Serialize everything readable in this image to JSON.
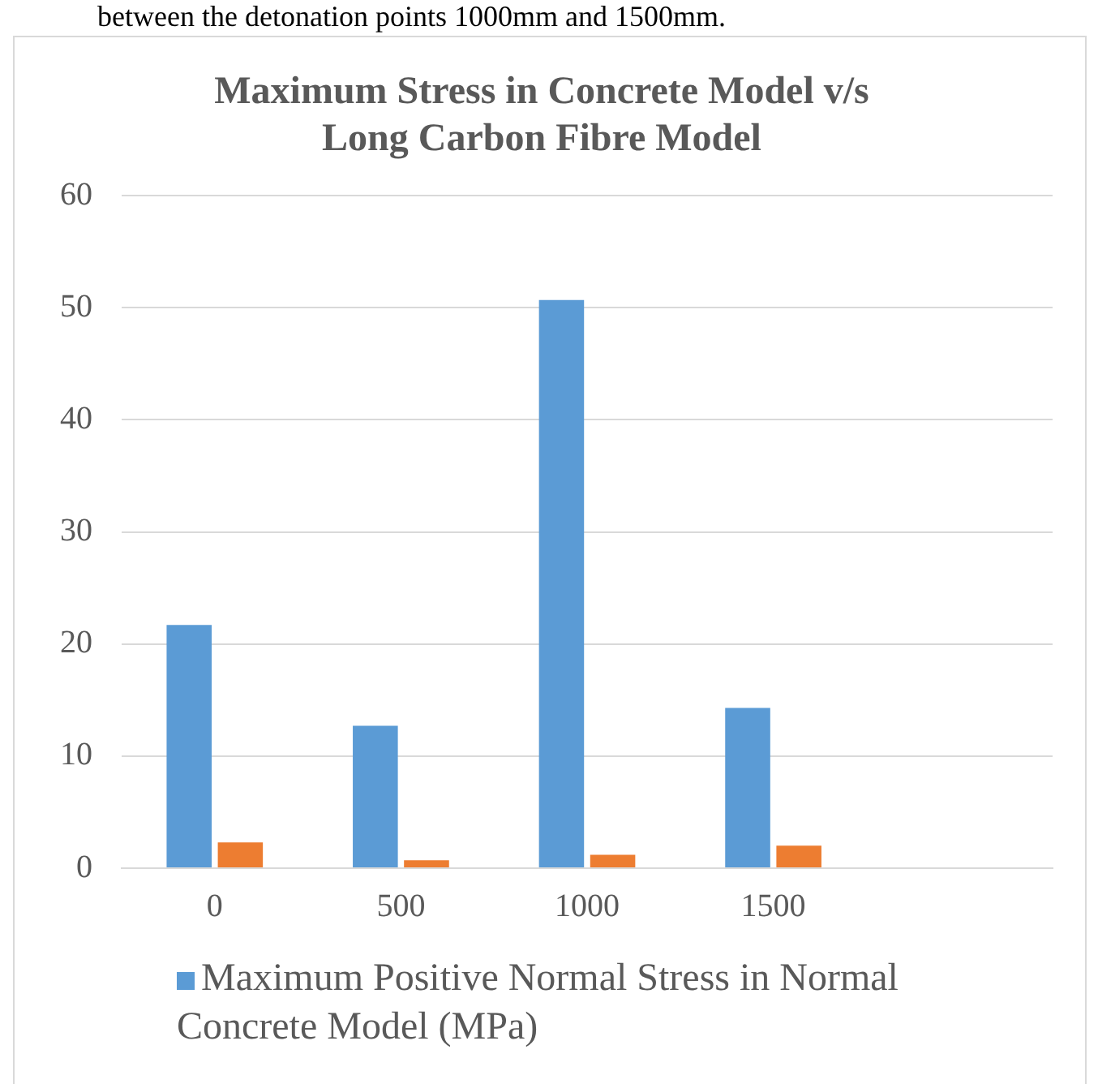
{
  "chart_data": {
    "type": "bar",
    "title": "Maximum Stress in Concrete Model v/s Long Carbon Fibre Model",
    "annotations": [
      "between the detonation points 1000mm and 1500mm."
    ],
    "categories": [
      "0",
      "500",
      "1000",
      "1500",
      null
    ],
    "series": [
      {
        "name": "Maximum Positive Normal Stress in Normal Concrete Model  (MPa)",
        "color": "#5b9bd5",
        "values": [
          21.7,
          12.7,
          50.7,
          14.3,
          null
        ]
      },
      {
        "color": "#ed7d31",
        "values": [
          2.3,
          0.7,
          1.2,
          2.0,
          null
        ]
      }
    ],
    "ylim": [
      0,
      60
    ],
    "yticks": [
      0,
      10,
      20,
      30,
      40,
      50,
      60
    ],
    "grid": "y",
    "legend": "bottom"
  }
}
